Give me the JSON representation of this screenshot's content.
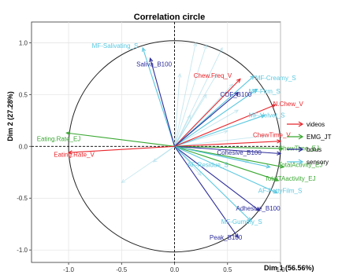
{
  "chart_data": {
    "type": "scatter",
    "title": "Correlation circle",
    "xlabel": "Dim 1 (56.56%)",
    "ylabel": "Dim 2 (27.28%)",
    "xlim": [
      -1.35,
      1.0
    ],
    "ylim": [
      -1.12,
      1.2
    ],
    "xticks": [
      -1.0,
      -0.5,
      0.0,
      0.5,
      1.0
    ],
    "yticks": [
      -1.0,
      -0.5,
      0.0,
      0.5,
      1.0
    ],
    "xtick_labels": [
      "-1.0",
      "-0.5",
      "0.0",
      "0.5",
      "1.0"
    ],
    "ytick_labels": [
      "-1.0",
      "-0.5",
      "0.0",
      "0.5",
      "1.0"
    ],
    "grid": true,
    "legend_position": "right",
    "groups": [
      {
        "name": "videos",
        "color": "#e8262c"
      },
      {
        "name": "EMG_JT",
        "color": "#3aa832"
      },
      {
        "name": "bolus",
        "color": "#2c2c9a"
      },
      {
        "name": "sensory",
        "color": "#5bc8e0"
      }
    ],
    "arrows": [
      {
        "label": "MF-Salivating_S",
        "group": "sensory",
        "x": -0.3,
        "y": 0.95,
        "lx": -0.78,
        "ly": 0.95
      },
      {
        "label": "Saliva_B100",
        "group": "bolus",
        "x": -0.23,
        "y": 0.85,
        "lx": -0.36,
        "ly": 0.77
      },
      {
        "label": "Chew.Freq_V",
        "group": "videos",
        "x": 0.62,
        "y": 0.65,
        "lx": 0.18,
        "ly": 0.66
      },
      {
        "label": "MF-Creamy_S",
        "group": "sensory",
        "x": 0.75,
        "y": 0.68,
        "lx": 0.76,
        "ly": 0.64
      },
      {
        "label": "MF-Firm_S",
        "group": "sensory",
        "x": 0.78,
        "y": 0.55,
        "lx": 0.7,
        "ly": 0.51
      },
      {
        "label": "COF_B100",
        "group": "bolus",
        "x": 0.6,
        "y": 0.52,
        "lx": 0.43,
        "ly": 0.48
      },
      {
        "label": "MF-Velvet_S",
        "group": "sensory",
        "x": 0.85,
        "y": 0.3,
        "lx": 0.7,
        "ly": 0.28
      },
      {
        "label": "N.Chew_V",
        "group": "videos",
        "x": 0.95,
        "y": 0.4,
        "lx": 0.93,
        "ly": 0.39
      },
      {
        "label": "ChewTime_V",
        "group": "videos",
        "x": 1.0,
        "y": 0.05,
        "lx": 0.74,
        "ly": 0.09
      },
      {
        "label": "ChewTime_EJ",
        "group": "EMG_JT",
        "x": 1.02,
        "y": -0.02,
        "lx": 0.98,
        "ly": -0.04
      },
      {
        "label": "Cohesive_B100",
        "group": "bolus",
        "x": 1.0,
        "y": -0.07,
        "lx": 0.4,
        "ly": -0.08
      },
      {
        "label": "TotalActivity_EJ",
        "group": "EMG_JT",
        "x": 1.03,
        "y": -0.2,
        "lx": 0.98,
        "ly": -0.2
      },
      {
        "label": "AF-Residue_S",
        "group": "sensory",
        "x": 0.9,
        "y": -0.2,
        "lx": 0.12,
        "ly": -0.2
      },
      {
        "label": "TotalTAactivity_EJ",
        "group": "EMG_JT",
        "x": 0.98,
        "y": -0.33,
        "lx": 0.85,
        "ly": -0.33
      },
      {
        "label": "AF-FattyFilm_S",
        "group": "sensory",
        "x": 0.97,
        "y": -0.45,
        "lx": 0.79,
        "ly": -0.45
      },
      {
        "label": "Adhesive_B100",
        "group": "bolus",
        "x": 0.8,
        "y": -0.62,
        "lx": 0.58,
        "ly": -0.62
      },
      {
        "label": "MF-Gummy_S",
        "group": "sensory",
        "x": 0.72,
        "y": -0.72,
        "lx": 0.44,
        "ly": -0.75
      },
      {
        "label": "Peak_B100",
        "group": "bolus",
        "x": 0.6,
        "y": -0.88,
        "lx": 0.33,
        "ly": -0.9
      },
      {
        "label": "Eating.Rate_EJ",
        "group": "EMG_JT",
        "x": -1.02,
        "y": 0.13,
        "lx": -1.3,
        "ly": 0.05
      },
      {
        "label": "Eating.Rate_V",
        "group": "videos",
        "x": -1.0,
        "y": -0.06,
        "lx": -1.14,
        "ly": -0.1
      }
    ],
    "faint_arrows": [
      {
        "x": 0.2,
        "y": 1.0
      },
      {
        "x": 0.3,
        "y": 0.98
      },
      {
        "x": 0.45,
        "y": 0.95
      },
      {
        "x": 0.05,
        "y": 0.7
      },
      {
        "x": 0.3,
        "y": 0.5
      },
      {
        "x": 0.55,
        "y": 0.6
      },
      {
        "x": 0.35,
        "y": 0.3
      },
      {
        "x": 0.5,
        "y": 0.15
      },
      {
        "x": -0.2,
        "y": -0.15
      },
      {
        "x": -0.5,
        "y": -0.35
      },
      {
        "x": 0.25,
        "y": -0.28
      },
      {
        "x": 0.7,
        "y": -0.15
      },
      {
        "x": 0.4,
        "y": 0.7
      },
      {
        "x": 0.6,
        "y": 0.35
      },
      {
        "x": 0.85,
        "y": 0.1
      },
      {
        "x": 0.15,
        "y": 0.3
      }
    ]
  }
}
